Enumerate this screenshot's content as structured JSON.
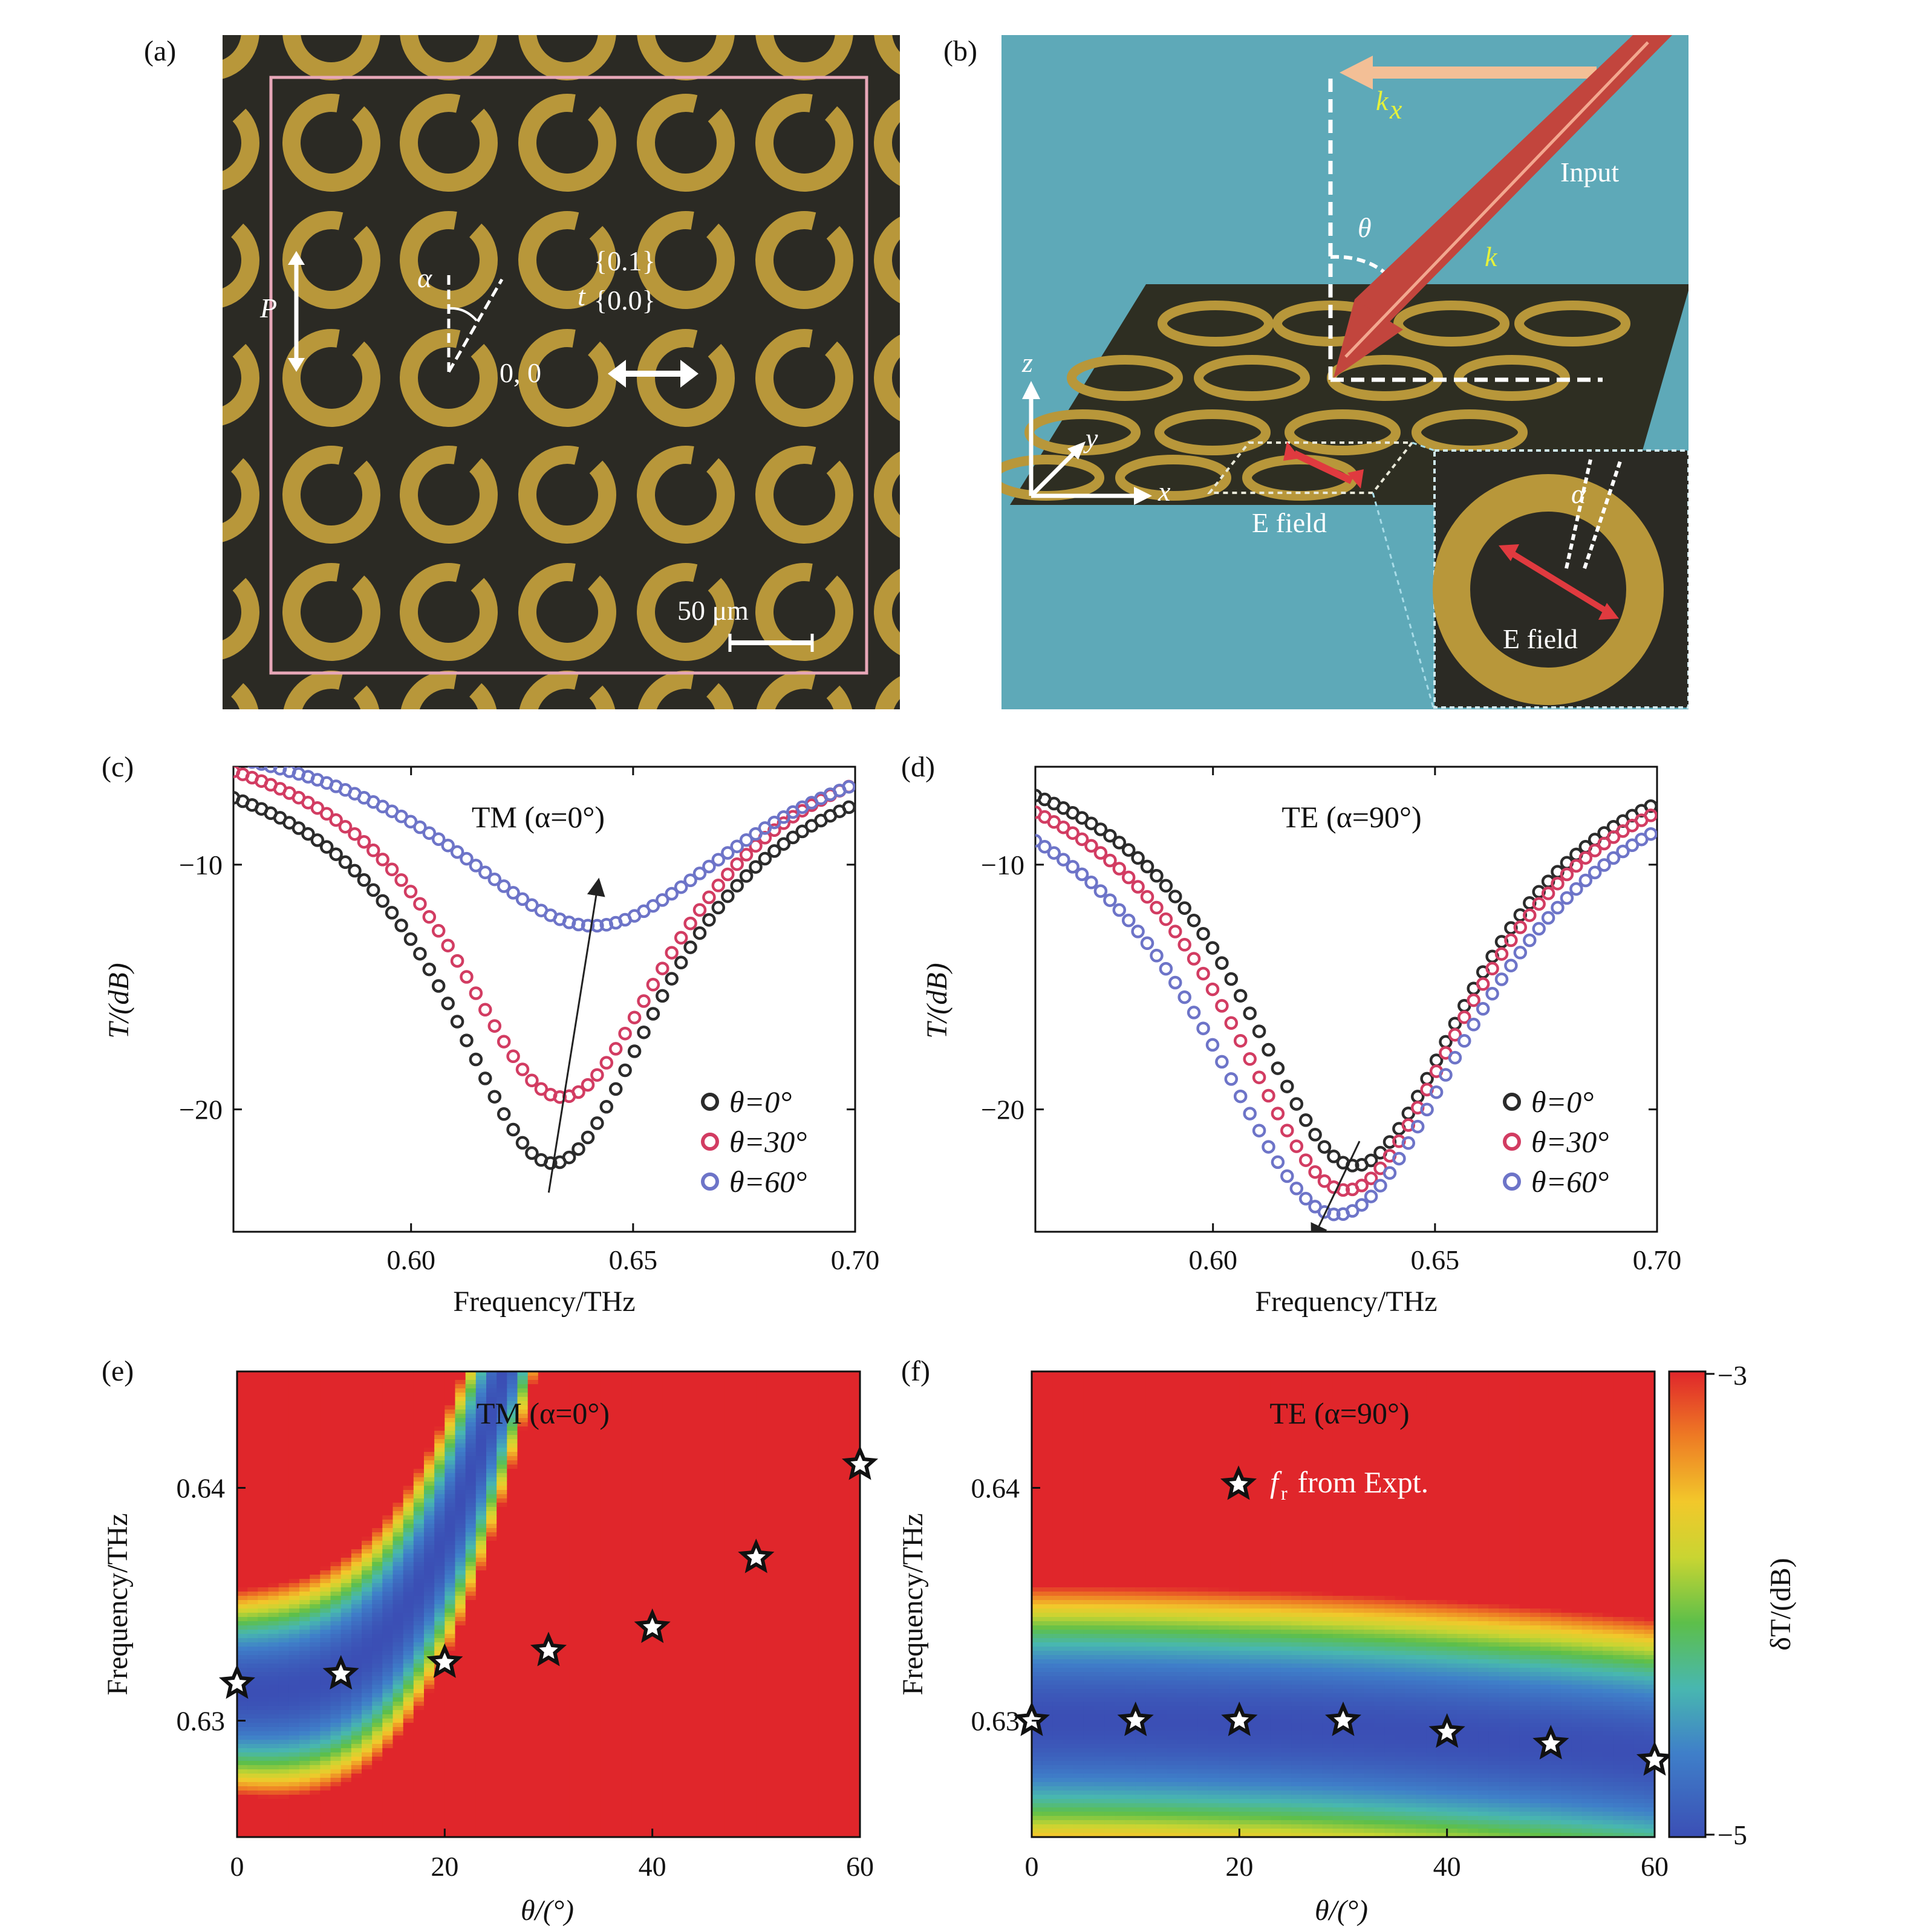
{
  "panel_labels": [
    "(a)",
    "(b)",
    "(c)",
    "(d)",
    "(e)",
    "(f)"
  ],
  "colors": {
    "black_series": "#2b2b2b",
    "red_series": "#d23c62",
    "blue_series": "#6d74c8",
    "gold_ring": "#b8973a",
    "dark_bg": "#2b2a24",
    "teal_bg": "#5ea9b8",
    "heat_low": "#3b4fb5",
    "heat_high": "#e0262b"
  },
  "panel_a": {
    "label_P": "P",
    "label_alpha": "α",
    "label_t": "t",
    "t_matrix_top": "{0.1}",
    "t_matrix_bottom": "{0.0}",
    "origin_label": "0, 0",
    "scale_bar": "50 μm",
    "icons": [
      "double-arrow-icon",
      "ring-icon"
    ]
  },
  "panel_b": {
    "label_kx": "k",
    "label_kx_sub": "x",
    "label_input": "Input",
    "label_theta": "θ",
    "label_k": "k",
    "axis_z": "z",
    "axis_y": "y",
    "axis_x": "x",
    "label_efield": "E field",
    "inset_alpha": "α",
    "inset_efield": "E field"
  },
  "chart_data": [
    {
      "id": "c",
      "type": "scatter",
      "title": "TM (α=0°)",
      "xlabel": "Frequency/THz",
      "ylabel": "T/(dB)",
      "xlim": [
        0.56,
        0.7
      ],
      "ylim": [
        -25,
        -6
      ],
      "xticks": [
        "0.60",
        "0.65",
        "0.70"
      ],
      "yticks": [
        "−10",
        "−20"
      ],
      "legend_position": "bottom-right",
      "series": [
        {
          "name": "θ=0°",
          "color": "#2b2b2b",
          "f0": 0.632,
          "min": -22.2,
          "width": 0.031,
          "edge": -4.5
        },
        {
          "name": "θ=30°",
          "color": "#d23c62",
          "f0": 0.634,
          "min": -19.5,
          "width": 0.032,
          "edge": -3.7
        },
        {
          "name": "θ=60°",
          "color": "#6d74c8",
          "f0": 0.641,
          "min": -12.5,
          "width": 0.042,
          "edge": -3.8
        }
      ],
      "arrow": {
        "from": [
          0.631,
          -23.4
        ],
        "to": [
          0.642,
          -10.9
        ]
      }
    },
    {
      "id": "d",
      "type": "scatter",
      "title": "TE (α=90°)",
      "xlabel": "Frequency/THz",
      "ylabel": "T/(dB)",
      "xlim": [
        0.56,
        0.7
      ],
      "ylim": [
        -25,
        -6
      ],
      "xticks": [
        "0.60",
        "0.65",
        "0.70"
      ],
      "yticks": [
        "−10",
        "−20"
      ],
      "legend_position": "bottom-right",
      "series": [
        {
          "name": "θ=0°",
          "color": "#2b2b2b",
          "f0": 0.632,
          "min": -22.3,
          "width": 0.033,
          "edge": -4.0
        },
        {
          "name": "θ=30°",
          "color": "#d23c62",
          "f0": 0.63,
          "min": -23.3,
          "width": 0.035,
          "edge": -4.0
        },
        {
          "name": "θ=60°",
          "color": "#6d74c8",
          "f0": 0.628,
          "min": -24.3,
          "width": 0.039,
          "edge": -4.0
        }
      ],
      "arrow": {
        "from": [
          0.633,
          -21.3
        ],
        "to": [
          0.623,
          -25.1
        ]
      }
    },
    {
      "id": "e",
      "type": "heatmap",
      "title": "TM (α=0°)",
      "xlabel": "θ/(°)",
      "ylabel": "Frequency/THz",
      "xlim": [
        0,
        60
      ],
      "ylim": [
        0.625,
        0.645
      ],
      "xticks": [
        "0",
        "20",
        "40",
        "60"
      ],
      "yticks": [
        "0.63",
        "0.64"
      ],
      "theta": [
        0,
        10,
        20,
        30,
        40,
        50,
        60
      ],
      "fr_expt": [
        0.6316,
        0.632,
        0.6325,
        0.633,
        0.634,
        0.637,
        0.641
      ],
      "colorbar_range": [
        -5,
        -3
      ]
    },
    {
      "id": "f",
      "type": "heatmap",
      "title": "TE (α=90°)",
      "xlabel": "θ/(°)",
      "ylabel": "Frequency/THz",
      "xlim": [
        0,
        60
      ],
      "ylim": [
        0.625,
        0.645
      ],
      "xticks": [
        "0",
        "20",
        "40",
        "60"
      ],
      "yticks": [
        "0.63",
        "0.64"
      ],
      "theta": [
        0,
        10,
        20,
        30,
        40,
        50,
        60
      ],
      "fr_expt": [
        0.63,
        0.63,
        0.63,
        0.63,
        0.6295,
        0.629,
        0.6283
      ],
      "legend_label_main": "f",
      "legend_label_sub": "r",
      "legend_label_rest": " from Expt.",
      "colorbar_label": "δT/(dB)",
      "colorbar_ticks": [
        "−3",
        "−5"
      ],
      "colorbar_range": [
        -5,
        -3
      ]
    }
  ]
}
